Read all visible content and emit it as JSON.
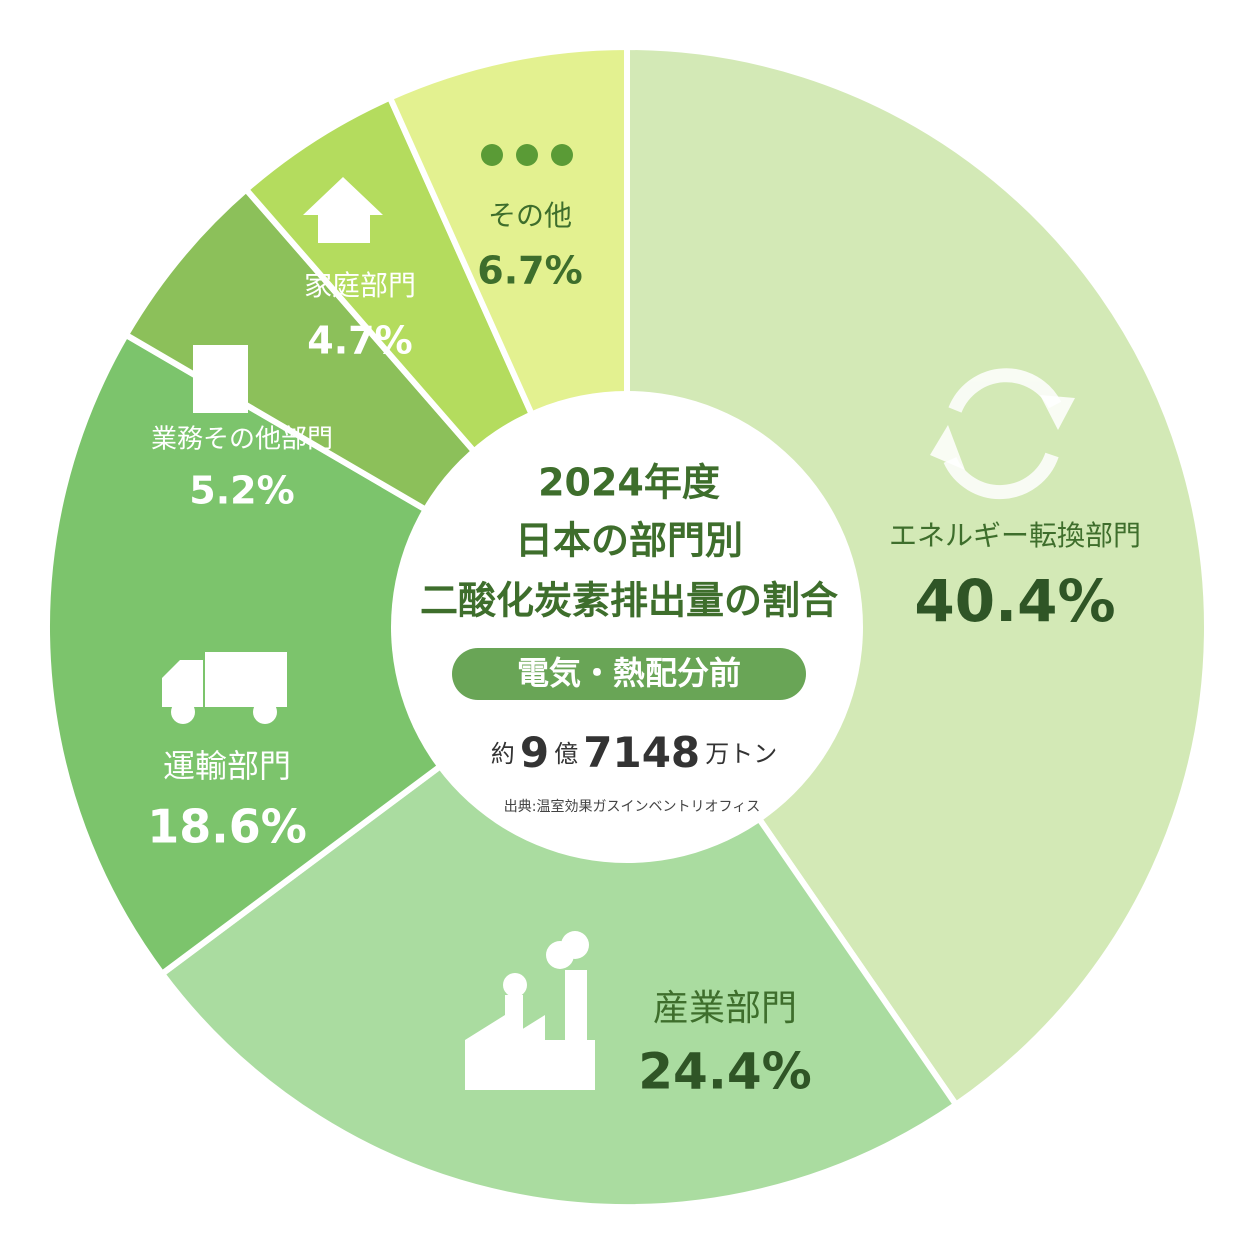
{
  "chart_data": {
    "type": "pie",
    "title_lines": [
      "2024年度",
      "日本の部門別",
      "二酸化炭素排出量の割合"
    ],
    "subtitle": "電気・熱配分前",
    "total_parts": [
      "約",
      "9",
      "億",
      "7148",
      "万トン"
    ],
    "source": "出典:温室効果ガスインベントリオフィス",
    "categories": [
      "エネルギー転換部門",
      "産業部門",
      "運輸部門",
      "業務その他部門",
      "家庭部門",
      "その他"
    ],
    "values": [
      40.4,
      24.4,
      18.6,
      5.2,
      4.7,
      6.7
    ],
    "value_labels": [
      "40.4%",
      "24.4%",
      "18.6%",
      "5.2%",
      "4.7%",
      "6.7%"
    ],
    "colors": [
      "#d3e9b6",
      "#aadca0",
      "#7cc46c",
      "#8cc05a",
      "#b4dc5e",
      "#e3f190"
    ]
  }
}
